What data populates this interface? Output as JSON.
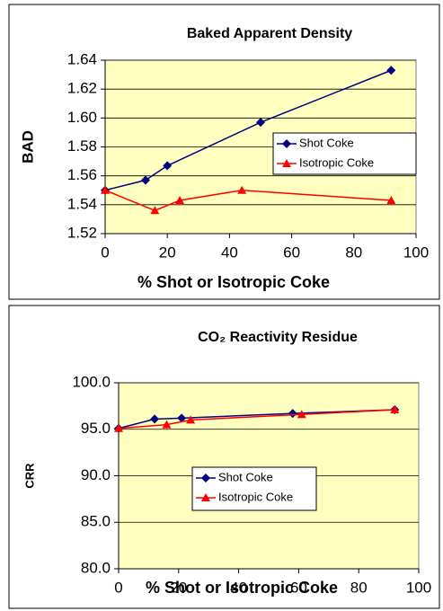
{
  "chart_data": [
    {
      "type": "line",
      "title": "Baked Apparent Density",
      "x_label": "% Shot or Isotropic Coke",
      "y_label": "BAD",
      "xlim": [
        0,
        100
      ],
      "xticks": [
        0,
        20,
        40,
        60,
        80,
        100
      ],
      "ylim": [
        1.52,
        1.64
      ],
      "yticks": [
        1.52,
        1.54,
        1.56,
        1.58,
        {
          "value": 1.6,
          "label": "1.60"
        },
        1.62,
        1.64
      ],
      "grid": true,
      "series": [
        {
          "name": "Shot Coke",
          "color": "#000080",
          "marker": "diamond",
          "x": [
            0,
            13,
            20,
            50,
            92
          ],
          "values": [
            1.55,
            1.557,
            1.567,
            1.597,
            1.633
          ]
        },
        {
          "name": "Isotropic Coke",
          "color": "#ff0000",
          "marker": "triangle",
          "x": [
            0,
            16,
            24,
            44,
            92
          ],
          "values": [
            1.55,
            1.536,
            1.543,
            1.55,
            1.543
          ]
        }
      ]
    },
    {
      "type": "line",
      "title": "CO₂ Reactivity Residue",
      "x_label": "% Shot or Isotropic Coke",
      "y_label": "CRR",
      "xlim": [
        0,
        100
      ],
      "xticks": [
        0,
        20,
        40,
        60,
        80,
        100
      ],
      "ylim": [
        80,
        100
      ],
      "yticks": [
        {
          "value": 80,
          "label": "80.0"
        },
        {
          "value": 85,
          "label": "85.0"
        },
        {
          "value": 90,
          "label": "90.0"
        },
        {
          "value": 95,
          "label": "95.0"
        },
        {
          "value": 100,
          "label": "100.0"
        }
      ],
      "grid": true,
      "series": [
        {
          "name": "Shot Coke",
          "color": "#000080",
          "marker": "diamond",
          "x": [
            0,
            12,
            21,
            58,
            92
          ],
          "values": [
            95.1,
            96.1,
            96.2,
            96.7,
            97.1
          ]
        },
        {
          "name": "Isotropic Coke",
          "color": "#ff0000",
          "marker": "triangle",
          "x": [
            0,
            16,
            24,
            61,
            92
          ],
          "values": [
            95.1,
            95.5,
            96.0,
            96.6,
            97.1
          ]
        }
      ]
    }
  ]
}
